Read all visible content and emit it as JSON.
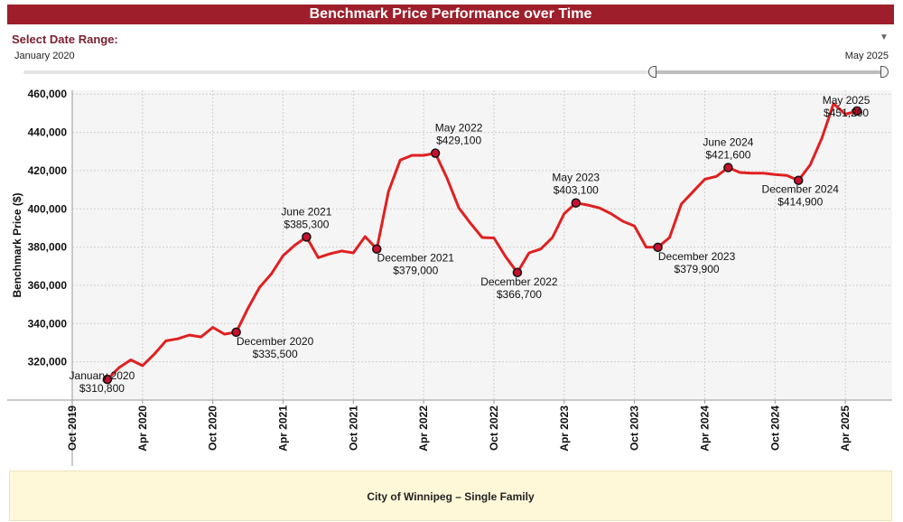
{
  "header": {
    "title": "Benchmark Price Performance over Time"
  },
  "date_range": {
    "label": "Select Date Range:",
    "start_label": "January 2020",
    "end_label": "May 2025",
    "dropdown_icon": "chevron-down-icon"
  },
  "footer": {
    "label": "City of Winnipeg – Single Family"
  },
  "colors": {
    "title_bg": "#9e1f2b",
    "line": "#e02020",
    "marker": "#c8102e",
    "footer_bg": "#fef8d9"
  },
  "chart_data": {
    "type": "line",
    "title": "",
    "xlabel": "",
    "ylabel": "Benchmark Price ($)",
    "ylim": [
      300000,
      462000
    ],
    "yticks": [
      320000,
      340000,
      360000,
      380000,
      400000,
      420000,
      440000,
      460000
    ],
    "ytick_labels": [
      "320,000",
      "340,000",
      "360,000",
      "380,000",
      "400,000",
      "420,000",
      "440,000",
      "460,000"
    ],
    "xlim": [
      "2019-10",
      "2025-08"
    ],
    "xticks": [
      "2019-10",
      "2020-04",
      "2020-10",
      "2021-04",
      "2021-10",
      "2022-04",
      "2022-10",
      "2023-04",
      "2023-10",
      "2024-04",
      "2024-10",
      "2025-04"
    ],
    "xtick_labels": [
      "Oct 2019",
      "Apr 2020",
      "Oct 2020",
      "Apr 2021",
      "Oct 2021",
      "Apr 2022",
      "Oct 2022",
      "Apr 2023",
      "Oct 2023",
      "Apr 2024",
      "Oct 2024",
      "Apr 2025"
    ],
    "grid": true,
    "series": [
      {
        "x": [
          "2020-01",
          "2020-02",
          "2020-03",
          "2020-04",
          "2020-05",
          "2020-06",
          "2020-07",
          "2020-08",
          "2020-09",
          "2020-10",
          "2020-11",
          "2020-12",
          "2021-01",
          "2021-02",
          "2021-03",
          "2021-04",
          "2021-05",
          "2021-06",
          "2021-07",
          "2021-08",
          "2021-09",
          "2021-10",
          "2021-11",
          "2021-12",
          "2022-01",
          "2022-02",
          "2022-03",
          "2022-04",
          "2022-05",
          "2022-06",
          "2022-07",
          "2022-08",
          "2022-09",
          "2022-10",
          "2022-11",
          "2022-12",
          "2023-01",
          "2023-02",
          "2023-03",
          "2023-04",
          "2023-05",
          "2023-06",
          "2023-07",
          "2023-08",
          "2023-09",
          "2023-10",
          "2023-11",
          "2023-12",
          "2024-01",
          "2024-02",
          "2024-03",
          "2024-04",
          "2024-05",
          "2024-06",
          "2024-07",
          "2024-08",
          "2024-09",
          "2024-10",
          "2024-11",
          "2024-12",
          "2025-01",
          "2025-02",
          "2025-03",
          "2025-04",
          "2025-05"
        ],
        "values": [
          310800,
          317000,
          321000,
          318000,
          324000,
          331000,
          332000,
          334000,
          333000,
          338000,
          334500,
          335500,
          348000,
          359000,
          366000,
          375500,
          381000,
          385300,
          374500,
          376500,
          378000,
          377000,
          385500,
          379000,
          409000,
          425500,
          428000,
          428000,
          429100,
          416000,
          400500,
          392500,
          385000,
          384800,
          375000,
          366700,
          377000,
          379000,
          385000,
          397500,
          403100,
          402000,
          400500,
          397500,
          393500,
          391000,
          380000,
          379900,
          385000,
          402500,
          409000,
          415500,
          417000,
          421600,
          419000,
          418700,
          418700,
          418000,
          417500,
          414900,
          423000,
          437000,
          455000,
          449500,
          451200
        ]
      }
    ],
    "annotations": [
      {
        "x": "2020-01",
        "value": 310800,
        "label": "January 2020",
        "price": "$310,800"
      },
      {
        "x": "2020-12",
        "value": 335500,
        "label": "December 2020",
        "price": "$335,500"
      },
      {
        "x": "2021-06",
        "value": 385300,
        "label": "June 2021",
        "price": "$385,300"
      },
      {
        "x": "2021-12",
        "value": 379000,
        "label": "December 2021",
        "price": "$379,000"
      },
      {
        "x": "2022-05",
        "value": 429100,
        "label": "May 2022",
        "price": "$429,100"
      },
      {
        "x": "2022-12",
        "value": 366700,
        "label": "December 2022",
        "price": "$366,700"
      },
      {
        "x": "2023-05",
        "value": 403100,
        "label": "May 2023",
        "price": "$403,100"
      },
      {
        "x": "2023-12",
        "value": 379900,
        "label": "December 2023",
        "price": "$379,900"
      },
      {
        "x": "2024-06",
        "value": 421600,
        "label": "June 2024",
        "price": "$421,600"
      },
      {
        "x": "2024-12",
        "value": 414900,
        "label": "December 2024",
        "price": "$414,900"
      },
      {
        "x": "2025-05",
        "value": 451200,
        "label": "May 2025",
        "price": "$451,200"
      }
    ]
  }
}
